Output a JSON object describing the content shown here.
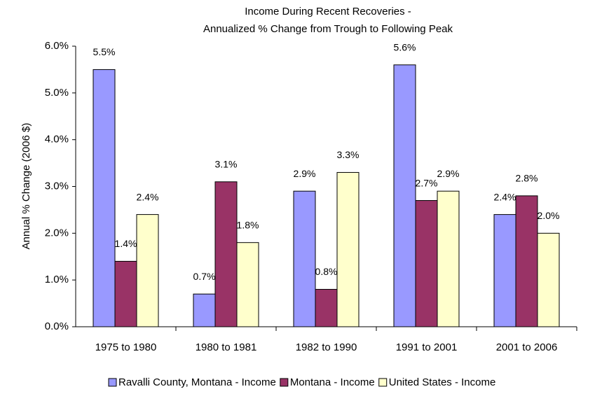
{
  "chart_data": {
    "type": "bar",
    "title": [
      "Income During Recent Recoveries -",
      "Annualized % Change from Trough to Following Peak"
    ],
    "ylabel": "Annual % Change (2006 $)",
    "categories": [
      "1975 to 1980",
      "1980 to 1981",
      "1982 to 1990",
      "1991 to 2001",
      "2001 to 2006"
    ],
    "series": [
      {
        "name": "Ravalli County, Montana - Income",
        "color": "#9999ff",
        "values": [
          5.5,
          0.7,
          2.9,
          5.6,
          2.4
        ],
        "value_labels": [
          "5.5%",
          "0.7%",
          "2.9%",
          "5.6%",
          "2.4%"
        ]
      },
      {
        "name": "Montana - Income",
        "color": "#993366",
        "values": [
          1.4,
          3.1,
          0.8,
          2.7,
          2.8
        ],
        "value_labels": [
          "1.4%",
          "3.1%",
          "0.8%",
          "2.7%",
          "2.8%"
        ]
      },
      {
        "name": "United States - Income",
        "color": "#ffffcc",
        "values": [
          2.4,
          1.8,
          3.3,
          2.9,
          2.0
        ],
        "value_labels": [
          "2.4%",
          "1.8%",
          "3.3%",
          "2.9%",
          "2.0%"
        ]
      }
    ],
    "ylim": [
      0,
      6
    ],
    "yticks": [
      {
        "value": 0,
        "label": "0.0%"
      },
      {
        "value": 1,
        "label": "1.0%"
      },
      {
        "value": 2,
        "label": "2.0%"
      },
      {
        "value": 3,
        "label": "3.0%"
      },
      {
        "value": 4,
        "label": "4.0%"
      },
      {
        "value": 5,
        "label": "5.0%"
      },
      {
        "value": 6,
        "label": "6.0%"
      }
    ],
    "grid": false,
    "legend": "bottom"
  }
}
